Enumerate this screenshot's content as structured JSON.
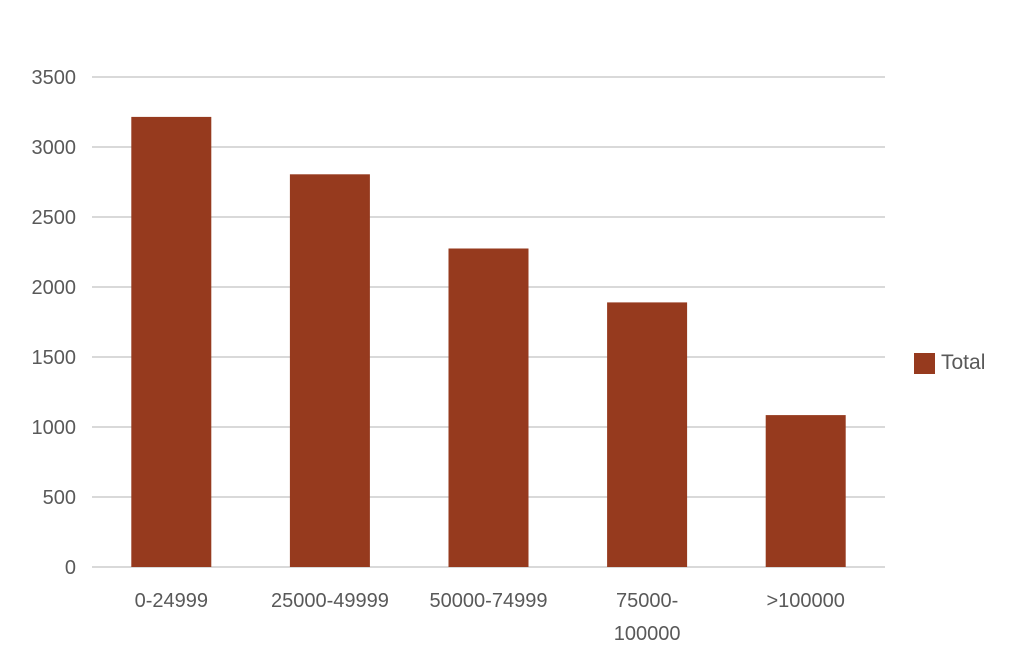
{
  "chart_data": {
    "type": "bar",
    "title": "",
    "xlabel": "",
    "ylabel": "",
    "categories": [
      "0-24999",
      "25000-49999",
      "50000-74999",
      "75000-\n100000",
      ">100000"
    ],
    "series": [
      {
        "name": "Total",
        "color": "#963a1e",
        "values": [
          3215,
          2805,
          2275,
          1890,
          1085
        ]
      }
    ],
    "ylim": [
      0,
      3500
    ],
    "yticks": [
      0,
      500,
      1000,
      1500,
      2000,
      2500,
      3000,
      3500
    ],
    "grid": true,
    "legend_position": "right"
  },
  "legend": {
    "label": "Total",
    "color": "#963a1e"
  }
}
